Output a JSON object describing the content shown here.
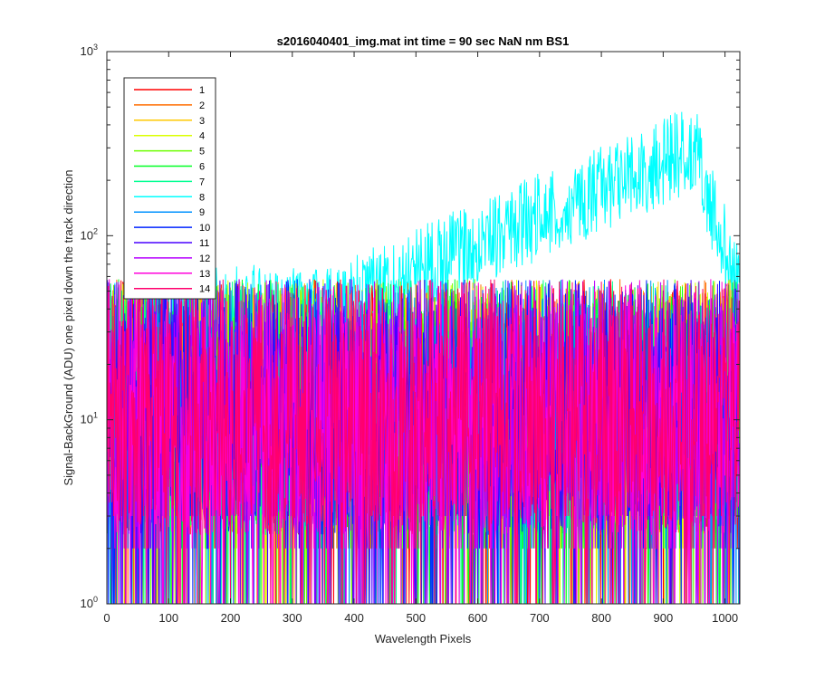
{
  "chart_data": {
    "type": "line",
    "title": "s2016040401_img.mat int time = 90 sec  NaN nm BS1",
    "xlabel": "Wavelength Pixels",
    "ylabel": "Signal-BackGround (ADU) one pixel down the track direction",
    "xlim": [
      0,
      1024
    ],
    "ylim": [
      1,
      1000
    ],
    "yscale": "log",
    "xticks": [
      "0",
      "100",
      "200",
      "300",
      "400",
      "500",
      "600",
      "700",
      "800",
      "900",
      "1000"
    ],
    "yticks": [
      {
        "base": "10",
        "exp": "0"
      },
      {
        "base": "10",
        "exp": "1"
      },
      {
        "base": "10",
        "exp": "2"
      },
      {
        "base": "10",
        "exp": "3"
      }
    ],
    "grid": false,
    "legend_position": "top-left",
    "series": [
      {
        "name": "1",
        "color": "#ff0000",
        "profile": "noise",
        "level": 10
      },
      {
        "name": "2",
        "color": "#ff6d00",
        "profile": "noise",
        "level": 10
      },
      {
        "name": "3",
        "color": "#ffc800",
        "profile": "noise",
        "level": 10
      },
      {
        "name": "4",
        "color": "#dbff00",
        "profile": "noise",
        "level": 10
      },
      {
        "name": "5",
        "color": "#6dff00",
        "profile": "noise",
        "level": 10
      },
      {
        "name": "6",
        "color": "#00ff24",
        "profile": "noise",
        "level": 10
      },
      {
        "name": "7",
        "color": "#00ff92",
        "profile": "noise",
        "level": 10
      },
      {
        "name": "8",
        "color": "#00ffff",
        "profile": "rising",
        "start_level": 35,
        "peak_level": 300,
        "peak_x": 950
      },
      {
        "name": "9",
        "color": "#0092ff",
        "profile": "noise",
        "level": 10
      },
      {
        "name": "10",
        "color": "#0024ff",
        "profile": "noise",
        "level": 10
      },
      {
        "name": "11",
        "color": "#4900ff",
        "profile": "noise",
        "level": 10
      },
      {
        "name": "12",
        "color": "#b600ff",
        "profile": "noise",
        "level": 10
      },
      {
        "name": "13",
        "color": "#ff00db",
        "profile": "noise",
        "level": 10
      },
      {
        "name": "14",
        "color": "#ff006d",
        "profile": "noise",
        "level": 10
      }
    ]
  }
}
